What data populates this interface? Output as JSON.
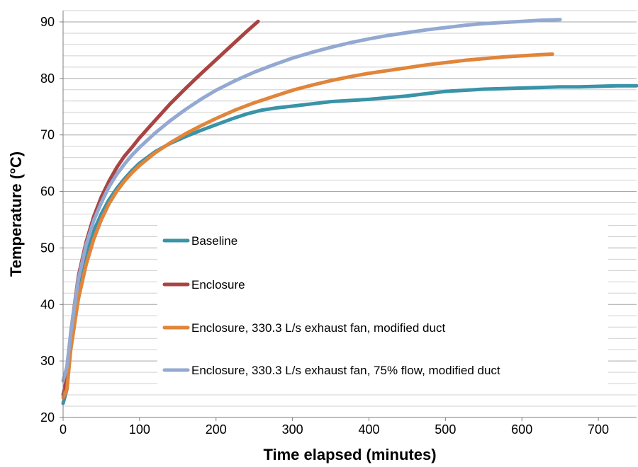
{
  "chart_data": {
    "type": "line",
    "title": "",
    "xlabel": "Time elapsed (minutes)",
    "ylabel": "Temperature (°C)",
    "xlim": [
      0,
      750
    ],
    "ylim": [
      20,
      92
    ],
    "xticks": [
      0,
      100,
      200,
      300,
      400,
      500,
      600,
      700
    ],
    "yticks": [
      20,
      30,
      40,
      50,
      60,
      70,
      80,
      90
    ],
    "minor_grid_step": 2,
    "grid": true,
    "legend_position": "center",
    "series": [
      {
        "name": "Baseline",
        "color": "#3a93a8",
        "x": [
          0,
          5,
          10,
          20,
          30,
          40,
          50,
          60,
          70,
          80,
          90,
          100,
          120,
          140,
          160,
          180,
          200,
          220,
          240,
          260,
          280,
          300,
          325,
          350,
          375,
          400,
          425,
          450,
          475,
          500,
          525,
          550,
          575,
          600,
          625,
          650,
          675,
          700,
          725,
          750
        ],
        "y": [
          22.5,
          25,
          33,
          42,
          48.5,
          53,
          56,
          58.5,
          60.5,
          62.2,
          63.7,
          65,
          67,
          68.5,
          69.7,
          70.8,
          71.8,
          72.8,
          73.7,
          74.4,
          74.8,
          75.1,
          75.5,
          75.9,
          76.1,
          76.3,
          76.6,
          76.9,
          77.3,
          77.7,
          77.9,
          78.1,
          78.2,
          78.3,
          78.4,
          78.5,
          78.5,
          78.6,
          78.7,
          78.7
        ]
      },
      {
        "name": "Enclosure",
        "color": "#a94442",
        "x": [
          0,
          5,
          10,
          20,
          30,
          40,
          50,
          60,
          70,
          80,
          90,
          100,
          120,
          140,
          160,
          180,
          200,
          220,
          240,
          255
        ],
        "y": [
          24,
          27,
          35,
          45,
          51,
          55.5,
          59,
          61.8,
          64.2,
          66.2,
          67.8,
          69.5,
          72.5,
          75.5,
          78.2,
          80.8,
          83.3,
          85.8,
          88.3,
          90.1
        ]
      },
      {
        "name": "Enclosure, 330.3 L/s exhaust fan, modified duct",
        "color": "#e0853a",
        "x": [
          0,
          5,
          10,
          20,
          30,
          40,
          50,
          60,
          70,
          80,
          90,
          100,
          120,
          140,
          160,
          180,
          200,
          225,
          250,
          275,
          300,
          325,
          350,
          375,
          400,
          425,
          450,
          475,
          500,
          525,
          550,
          575,
          600,
          625,
          640
        ],
        "y": [
          23.5,
          25,
          32,
          41,
          47,
          51.5,
          55,
          57.8,
          60,
          61.8,
          63.3,
          64.6,
          66.8,
          68.6,
          70.2,
          71.6,
          72.9,
          74.4,
          75.7,
          76.8,
          77.9,
          78.8,
          79.6,
          80.3,
          80.9,
          81.4,
          81.9,
          82.4,
          82.8,
          83.2,
          83.5,
          83.8,
          84,
          84.2,
          84.3
        ]
      },
      {
        "name": "Enclosure, 330.3 L/s exhaust fan, 75% flow, modified duct",
        "color": "#93a9d2",
        "x": [
          0,
          5,
          10,
          20,
          30,
          40,
          50,
          60,
          70,
          80,
          90,
          100,
          120,
          140,
          160,
          180,
          200,
          225,
          250,
          275,
          300,
          325,
          350,
          375,
          400,
          425,
          450,
          475,
          500,
          525,
          550,
          575,
          600,
          625,
          650
        ],
        "y": [
          26.5,
          29,
          35,
          44.5,
          50.5,
          54.8,
          58,
          60.8,
          63,
          64.8,
          66.4,
          67.8,
          70.3,
          72.5,
          74.5,
          76.3,
          77.9,
          79.6,
          81.1,
          82.4,
          83.6,
          84.6,
          85.5,
          86.3,
          87,
          87.6,
          88.1,
          88.6,
          89,
          89.4,
          89.7,
          89.9,
          90.1,
          90.3,
          90.4
        ]
      }
    ]
  }
}
